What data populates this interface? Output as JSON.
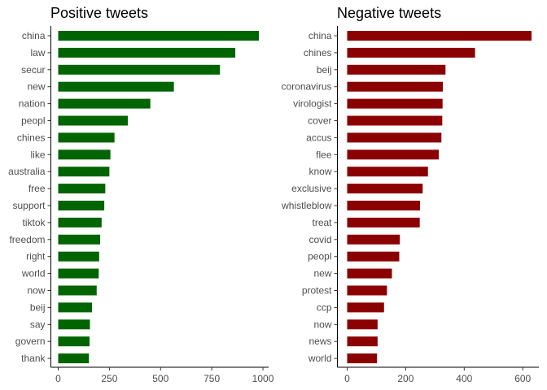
{
  "chart_data": [
    {
      "type": "bar",
      "orientation": "horizontal",
      "title": "Positive tweets",
      "color": "#006400",
      "xlim": [
        0,
        1000
      ],
      "xticks": [
        "0",
        "250",
        "500",
        "750",
        "1000"
      ],
      "categories": [
        "china",
        "law",
        "secur",
        "new",
        "nation",
        "peopl",
        "chines",
        "like",
        "australia",
        "free",
        "support",
        "tiktok",
        "freedom",
        "right",
        "world",
        "now",
        "beij",
        "say",
        "govern",
        "thank"
      ],
      "values": [
        980,
        865,
        790,
        565,
        450,
        340,
        275,
        255,
        250,
        230,
        225,
        212,
        205,
        200,
        198,
        188,
        165,
        155,
        153,
        150
      ],
      "xlabel": "",
      "ylabel": "",
      "grid": false
    },
    {
      "type": "bar",
      "orientation": "horizontal",
      "title": "Negative tweets",
      "color": "#8B0000",
      "xlim": [
        0,
        630
      ],
      "xticks": [
        "0",
        "200",
        "400",
        "600"
      ],
      "categories": [
        "china",
        "chines",
        "beij",
        "coronavirus",
        "virologist",
        "cover",
        "accus",
        "flee",
        "know",
        "exclusive",
        "whistleblow",
        "treat",
        "covid",
        "peopl",
        "new",
        "protest",
        "ccp",
        "now",
        "news",
        "world"
      ],
      "values": [
        630,
        437,
        336,
        327,
        326,
        325,
        322,
        313,
        276,
        258,
        249,
        248,
        180,
        178,
        153,
        136,
        126,
        104,
        104,
        102
      ],
      "xlabel": "",
      "ylabel": "",
      "grid": false
    }
  ]
}
